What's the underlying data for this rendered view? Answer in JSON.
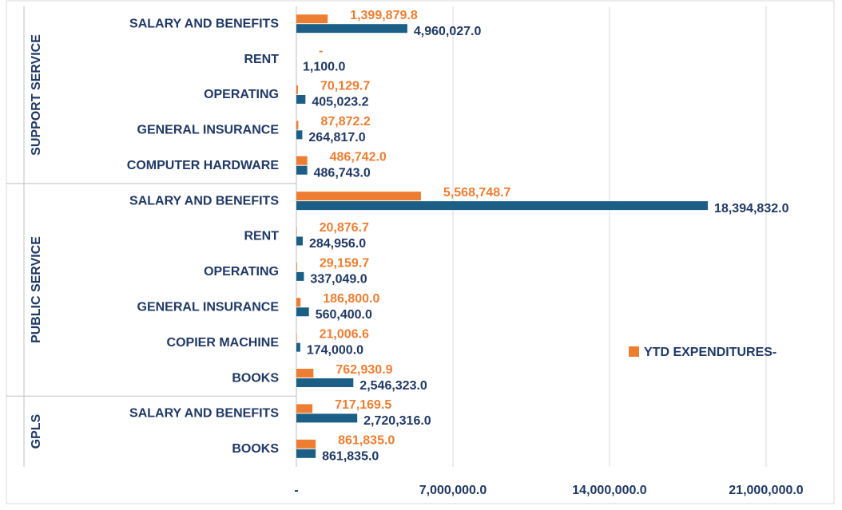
{
  "chart_data": {
    "type": "hbar",
    "groups": [
      {
        "name": "SUPPORT SERVICE",
        "categories": [
          "SALARY AND BENEFITS",
          "RENT",
          "OPERATING",
          "GENERAL INSURANCE",
          "COMPUTER HARDWARE"
        ]
      },
      {
        "name": "PUBLIC SERVICE",
        "categories": [
          "SALARY AND BENEFITS",
          "RENT",
          "OPERATING",
          "GENERAL INSURANCE",
          "COPIER MACHINE",
          "BOOKS"
        ]
      },
      {
        "name": "GPLS",
        "categories": [
          "SALARY AND BENEFITS",
          "BOOKS"
        ]
      }
    ],
    "series": [
      {
        "name": "YTD EXPENDITURES-",
        "color": "#ed7d31",
        "values": [
          1399879.8,
          0,
          70129.7,
          87872.2,
          486742.0,
          5568748.7,
          20876.7,
          29159.7,
          186800.0,
          21006.6,
          762930.9,
          717169.5,
          861835.0
        ],
        "value_labels": [
          "1,399,879.8",
          "-",
          "70,129.7",
          "87,872.2",
          "486,742.0",
          "5,568,748.7",
          "20,876.7",
          "29,159.7",
          "186,800.0",
          "21,006.6",
          "762,930.9",
          "717,169.5",
          "861,835.0"
        ]
      },
      {
        "color": "#1b5e86",
        "values": [
          4960027.0,
          1100.0,
          405023.2,
          264817.0,
          486743.0,
          18394832.0,
          284956.0,
          337049.0,
          560400.0,
          174000.0,
          2546323.0,
          2720316.0,
          861835.0
        ],
        "value_labels": [
          "4,960,027.0",
          "1,100.0",
          "405,023.2",
          "264,817.0",
          "486,743.0",
          "18,394,832.0",
          "284,956.0",
          "337,049.0",
          "560,400.0",
          "174,000.0",
          "2,546,323.0",
          "2,720,316.0",
          "861,835.0"
        ]
      }
    ],
    "xlim": [
      0,
      24000000
    ],
    "xticks": [
      {
        "value": 0,
        "label": "-"
      },
      {
        "value": 7000000,
        "label": "7,000,000.0"
      },
      {
        "value": 14000000,
        "label": "14,000,000.0"
      },
      {
        "value": 21000000,
        "label": "21,000,000.0"
      }
    ],
    "grid": true
  }
}
